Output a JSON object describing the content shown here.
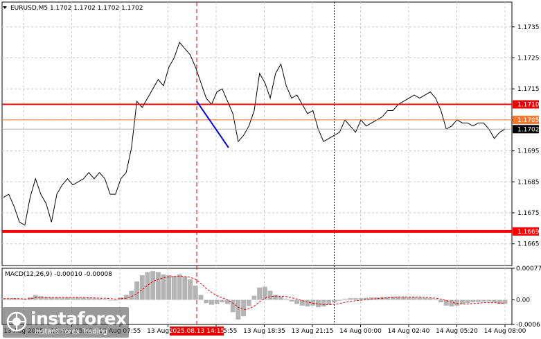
{
  "header": {
    "triangle_icon": "triangle-down-icon",
    "text": "EURUSD,M5  1.1702 1.1702 1.1702 1.1702"
  },
  "chart_data": [
    {
      "type": "line",
      "symbol": "EURUSD",
      "timeframe": "M5",
      "ylim": [
        1.1658,
        1.1743
      ],
      "y_ticks": [
        "1.1735",
        "1.1725",
        "1.1715",
        "1.1705",
        "1.1695",
        "1.1685",
        "1.1675",
        "1.1665"
      ],
      "x_ticks": [
        "13 Aug 2025",
        "13 Aug 05:15",
        "13 Aug 07:55",
        "13 Aug 10:35",
        "13 Aug 15:55",
        "13 Aug 18:35",
        "13 Aug 21:15",
        "14 Aug 00:00",
        "14 Aug 02:40",
        "14 Aug 05:20",
        "14 Aug 08:00"
      ],
      "cursor_time_label": "2025.08.13 14:15",
      "grid": true,
      "levels": [
        {
          "value": 1.171,
          "label": "1.1710",
          "color": "#e60000",
          "style": "thick"
        },
        {
          "value": 1.1705,
          "label": "1.1705",
          "color": "#f07830",
          "style": "thin"
        },
        {
          "value": 1.1702,
          "label": "1.1702",
          "color": "#aaaaaa",
          "style": "current"
        },
        {
          "value": 1.1669,
          "label": "1.1669",
          "color": "#ff0000",
          "style": "thickest"
        }
      ],
      "price_series": [
        1.168,
        1.1681,
        1.1677,
        1.1672,
        1.1671,
        1.168,
        1.1686,
        1.1681,
        1.1678,
        1.1672,
        1.1681,
        1.1684,
        1.1686,
        1.1684,
        1.1685,
        1.1686,
        1.1688,
        1.1686,
        1.1688,
        1.1686,
        1.1681,
        1.1681,
        1.1686,
        1.1688,
        1.1696,
        1.1711,
        1.1709,
        1.1712,
        1.1715,
        1.1718,
        1.1716,
        1.1722,
        1.1725,
        1.173,
        1.1728,
        1.1726,
        1.1722,
        1.1717,
        1.1712,
        1.171,
        1.1714,
        1.1715,
        1.1711,
        1.1707,
        1.1698,
        1.17,
        1.1703,
        1.1708,
        1.172,
        1.1717,
        1.1712,
        1.172,
        1.1723,
        1.1716,
        1.1712,
        1.1713,
        1.171,
        1.1707,
        1.1708,
        1.1702,
        1.1698,
        1.1699,
        1.17,
        1.1701,
        1.1705,
        1.1703,
        1.1701,
        1.1705,
        1.1703,
        1.1704,
        1.1705,
        1.1706,
        1.1708,
        1.1708,
        1.171,
        1.1711,
        1.1712,
        1.1713,
        1.1712,
        1.1713,
        1.1714,
        1.1712,
        1.1708,
        1.1702,
        1.1703,
        1.1705,
        1.1704,
        1.1704,
        1.1703,
        1.1704,
        1.1704,
        1.1702,
        1.1699,
        1.1701,
        1.1702
      ],
      "trend_line": {
        "from": {
          "x": "13 Aug 14:15",
          "y": 1.1711
        },
        "to": {
          "x": "13 Aug 17:00",
          "y": 1.1696
        },
        "color": "#0000dd"
      }
    },
    {
      "type": "bar",
      "title": "MACD(12,26,9) -0.00010 -0.00008",
      "ylim": [
        -0.0006,
        0.00077
      ],
      "y_ticks": [
        "0.00077",
        "0.00",
        "-0.0006"
      ],
      "histogram": [
        3e-05,
        3e-05,
        4e-05,
        2e-05,
        1e-05,
        6e-05,
        0.00012,
        9e-05,
        7e-05,
        6e-05,
        6e-05,
        5e-05,
        6e-05,
        5e-05,
        6e-05,
        5e-05,
        5e-05,
        4e-05,
        3e-05,
        2e-05,
        0.0,
        0.0,
        6e-05,
        0.00012,
        0.00022,
        0.00045,
        0.0006,
        0.00068,
        0.0007,
        0.00068,
        0.00062,
        0.0006,
        0.00058,
        0.00062,
        0.00057,
        0.0005,
        0.00035,
        0.00012,
        -8e-05,
        -0.00012,
        -0.0001,
        -6e-05,
        -0.0001,
        -0.0003,
        -0.00048,
        -0.0004,
        -0.00015,
        0.0001,
        0.0003,
        0.00032,
        0.00022,
        0.00012,
        8e-05,
        2e-05,
        -4e-05,
        -0.0001,
        -0.00014,
        -0.00016,
        -0.00014,
        -0.00018,
        -0.00016,
        -0.00012,
        -6e-05,
        -2e-05,
        2e-05,
        4e-05,
        4e-05,
        4e-05,
        5e-05,
        6e-05,
        6e-05,
        7e-05,
        7e-05,
        8e-05,
        8e-05,
        8e-05,
        7e-05,
        7e-05,
        6e-05,
        5e-05,
        4e-05,
        2e-05,
        -6e-05,
        -0.00014,
        -0.00016,
        -0.00014,
        -0.0001,
        -8e-05,
        -6e-05,
        -5e-05,
        -4e-05,
        -4e-05,
        -6e-05,
        -0.0001,
        -0.0001
      ],
      "signal": [
        3e-05,
        3e-05,
        3e-05,
        3e-05,
        2e-05,
        3e-05,
        5e-05,
        6e-05,
        6e-05,
        6e-05,
        6e-05,
        6e-05,
        6e-05,
        6e-05,
        6e-05,
        6e-05,
        5e-05,
        5e-05,
        4e-05,
        4e-05,
        3e-05,
        2e-05,
        3e-05,
        4e-05,
        8e-05,
        0.00015,
        0.00025,
        0.00035,
        0.00045,
        0.0005,
        0.00054,
        0.00056,
        0.00057,
        0.00058,
        0.00057,
        0.00055,
        0.0005,
        0.0004,
        0.00028,
        0.00018,
        0.0001,
        5e-05,
        0.0,
        -8e-05,
        -0.00018,
        -0.00024,
        -0.00022,
        -0.00015,
        -5e-05,
        4e-05,
        8e-05,
        9e-05,
        9e-05,
        8e-05,
        5e-05,
        2e-05,
        -2e-05,
        -6e-05,
        -8e-05,
        -0.0001,
        -0.00012,
        -0.00012,
        -0.00011,
        -9e-05,
        -6e-05,
        -4e-05,
        -2e-05,
        -1e-05,
        1e-05,
        2e-05,
        3e-05,
        4e-05,
        5e-05,
        6e-05,
        7e-05,
        7e-05,
        7e-05,
        7e-05,
        7e-05,
        6e-05,
        5e-05,
        4e-05,
        2e-05,
        -2e-05,
        -6e-05,
        -9e-05,
        -0.0001,
        -0.0001,
        -9e-05,
        -8e-05,
        -7e-05,
        -7e-05,
        -7e-05,
        -8e-05,
        -8e-05
      ],
      "histogram_color": "#b4b4b4",
      "signal_color": "#e60000"
    }
  ],
  "watermark": {
    "logo_icon": "instaforex-logo-icon",
    "brand": "instaforex",
    "tagline": "Instant Forex Trading"
  }
}
